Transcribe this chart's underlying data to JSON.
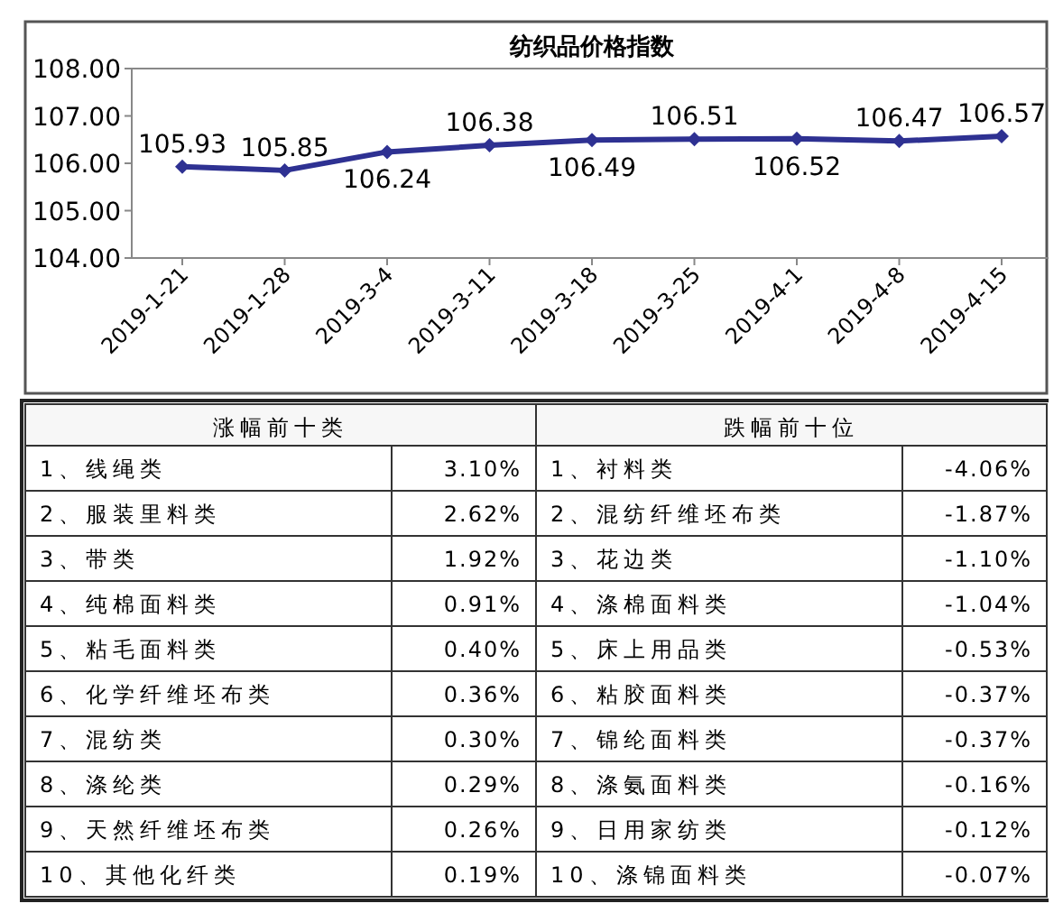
{
  "chart_data": [
    {
      "type": "line",
      "title": "纺织品价格指数",
      "categories": [
        "2019-1-21",
        "2019-1-28",
        "2019-3-4",
        "2019-3-11",
        "2019-3-18",
        "2019-3-25",
        "2019-4-1",
        "2019-4-8",
        "2019-4-15"
      ],
      "series": [
        {
          "color": "#2e3192",
          "values": [
            105.93,
            105.85,
            106.24,
            106.38,
            106.49,
            106.51,
            106.52,
            106.47,
            106.57
          ]
        }
      ],
      "ylim": [
        104,
        108
      ],
      "yticks": [
        {
          "value": 104,
          "label": "104.00"
        },
        {
          "value": 105,
          "label": "105.00"
        },
        {
          "value": 106,
          "label": "106.00"
        },
        {
          "value": 107,
          "label": "107.00"
        },
        {
          "value": 108,
          "label": "108.00"
        }
      ],
      "marker": "diamond",
      "data_labels": true
    },
    {
      "type": "other",
      "title": "涨幅前十类",
      "categories": [
        "1、线绳类",
        "2、服装里料类",
        "3、带类",
        "4、纯棉面料类",
        "5、粘毛面料类",
        "6、化学纤维坯布类",
        "7、混纺类",
        "8、涤纶类",
        "9、天然纤维坯布类",
        "10、其他化纤类"
      ],
      "value_labels": [
        "3.10%",
        "2.62%",
        "1.92%",
        "0.91%",
        "0.40%",
        "0.36%",
        "0.30%",
        "0.29%",
        "0.26%",
        "0.19%"
      ]
    },
    {
      "type": "other",
      "title": "跌幅前十位",
      "categories": [
        "1、衬料类",
        "2、混纺纤维坯布类",
        "3、花边类",
        "4、涤棉面料类",
        "5、床上用品类",
        "6、粘胶面料类",
        "7、锦纶面料类",
        "8、涤氨面料类",
        "9、日用家纺类",
        "10、涤锦面料类"
      ],
      "value_labels": [
        "-4.06%",
        "-1.87%",
        "-1.10%",
        "-1.04%",
        "-0.53%",
        "-0.37%",
        "-0.37%",
        "-0.16%",
        "-0.12%",
        "-0.07%"
      ]
    }
  ]
}
